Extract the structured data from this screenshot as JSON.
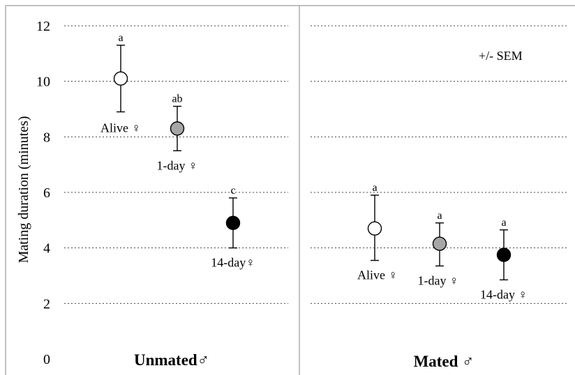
{
  "chart_data": {
    "type": "scatter",
    "ylabel": "Mating duration (minutes)",
    "ylim": [
      0,
      12
    ],
    "yticks": [
      "0",
      "2",
      "4",
      "6",
      "8",
      "10",
      "12"
    ],
    "grid": true,
    "annotation": "+/- SEM",
    "colors": {
      "Alive": "#ffffff",
      "1-day": "#a6a6a6",
      "14-day": "#000000"
    },
    "panels": [
      {
        "group": "Unmated♂",
        "points": [
          {
            "label": "Alive ♀",
            "fill": "Alive",
            "mean": 10.1,
            "upper": 11.3,
            "lower": 8.9,
            "sig": "a"
          },
          {
            "label": "1-day ♀",
            "fill": "1-day",
            "mean": 8.3,
            "upper": 9.1,
            "lower": 7.5,
            "sig": "ab"
          },
          {
            "label": "14-day♀",
            "fill": "14-day",
            "mean": 4.9,
            "upper": 5.8,
            "lower": 4.0,
            "sig": "c"
          }
        ]
      },
      {
        "group": "Mated ♂",
        "points": [
          {
            "label": "Alive ♀",
            "fill": "Alive",
            "mean": 4.7,
            "upper": 5.9,
            "lower": 3.55,
            "sig": "a"
          },
          {
            "label": "1-day ♀",
            "fill": "1-day",
            "mean": 4.15,
            "upper": 4.9,
            "lower": 3.35,
            "sig": "a"
          },
          {
            "label": "14-day ♀",
            "fill": "14-day",
            "mean": 3.75,
            "upper": 4.65,
            "lower": 2.85,
            "sig": "a"
          }
        ]
      }
    ]
  }
}
